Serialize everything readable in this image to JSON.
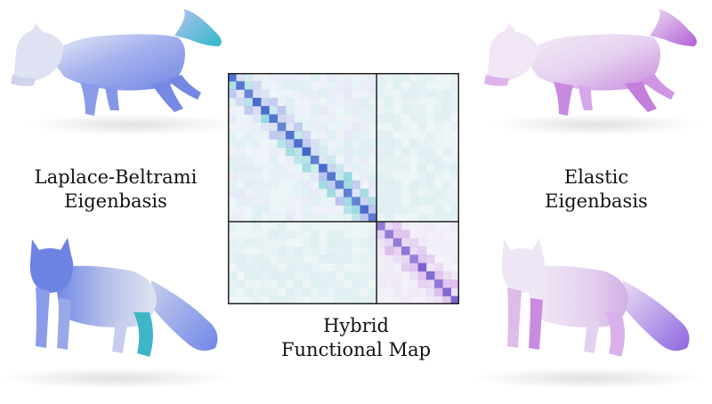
{
  "captions": {
    "laplace_line1": "Laplace-Beltrami",
    "laplace_line2": "Eigenbasis",
    "elastic_line1": "Elastic",
    "elastic_line2": "Eigenbasis",
    "hybrid_line1": "Hybrid",
    "hybrid_line2": "Functional Map"
  },
  "colors": {
    "laplace_blue": "#7f8fe6",
    "laplace_cyan": "#3cb8c8",
    "elastic_purple": "#c77ee0",
    "elastic_light": "#efe3f5",
    "grid_lines": "#222222",
    "matrix_bg": "#f7f9fa"
  }
}
